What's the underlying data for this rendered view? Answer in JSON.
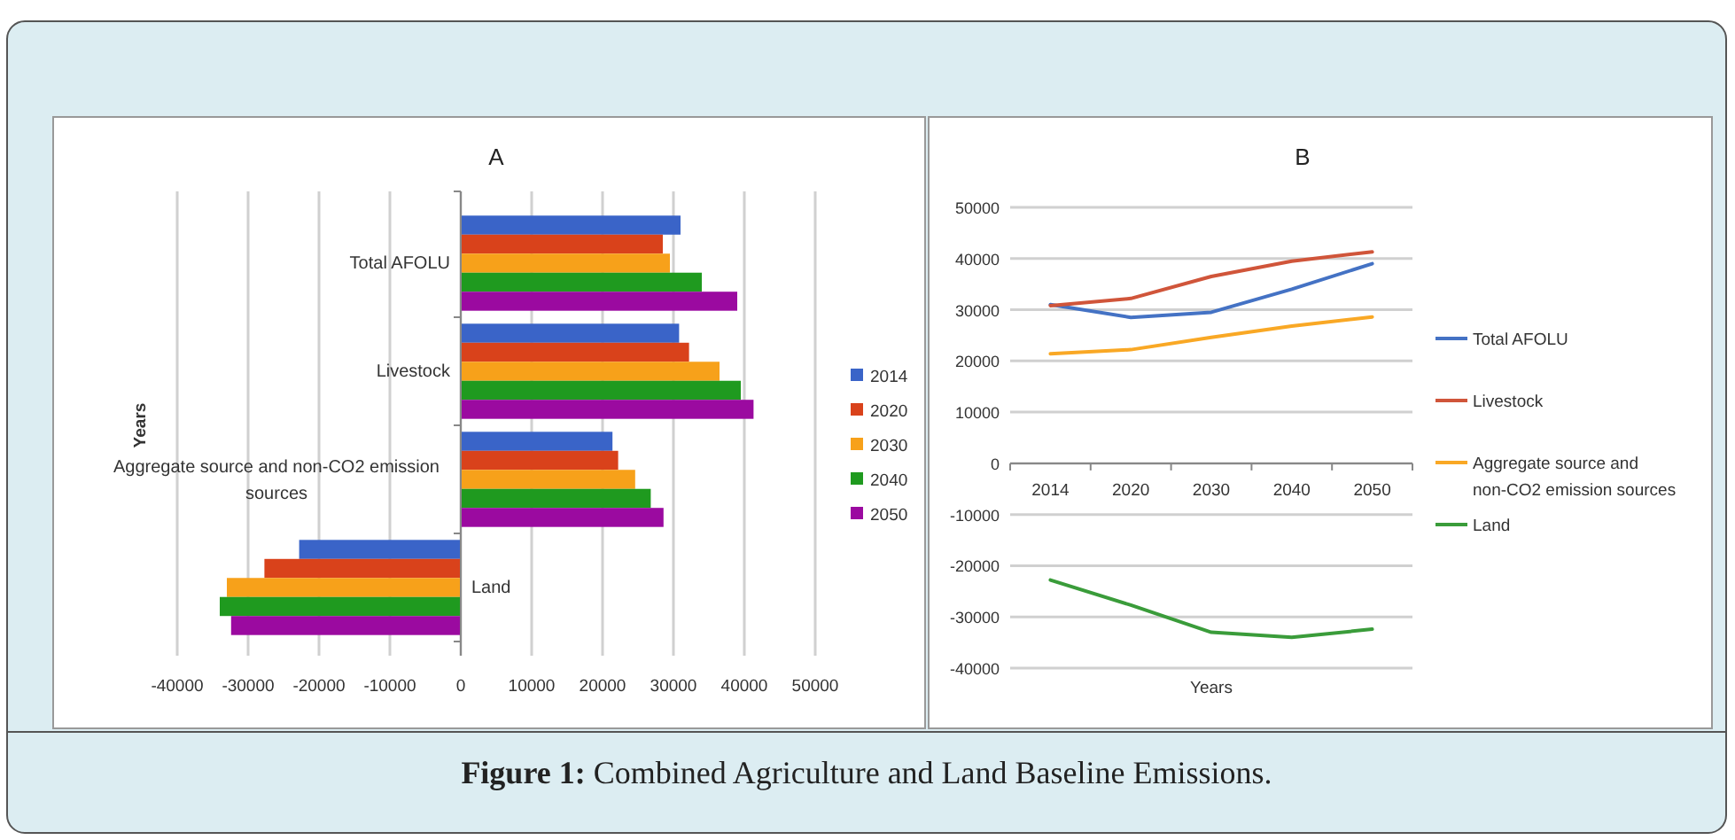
{
  "chart_data": [
    {
      "type": "bar",
      "orientation": "horizontal",
      "title": "A",
      "ylabel": "Years",
      "categories": [
        "Total AFOLU",
        "Livestock",
        "Aggregate source and non-CO2 emission sources",
        "Land"
      ],
      "series": [
        {
          "name": "2014",
          "color": "#3a64c8",
          "values": [
            31000,
            30800,
            21400,
            -22800
          ]
        },
        {
          "name": "2020",
          "color": "#d9421b",
          "values": [
            28500,
            32200,
            22200,
            -27700
          ]
        },
        {
          "name": "2030",
          "color": "#f7a11a",
          "values": [
            29500,
            36500,
            24600,
            -33000
          ]
        },
        {
          "name": "2040",
          "color": "#1f9a1f",
          "values": [
            34000,
            39500,
            26800,
            -34000
          ]
        },
        {
          "name": "2050",
          "color": "#9b0aa0",
          "values": [
            39000,
            41300,
            28600,
            -32400
          ]
        }
      ],
      "xlim": [
        -40000,
        50000
      ],
      "xticks": [
        -40000,
        -30000,
        -20000,
        -10000,
        0,
        10000,
        20000,
        30000,
        40000,
        50000
      ],
      "grid": "x",
      "legend": "right",
      "annotations": [
        "Figure 1: Combined Agriculture and Land Baseline Emissions."
      ]
    },
    {
      "type": "line",
      "title": "B",
      "xlabel": "Years",
      "categories": [
        "2014",
        "2020",
        "2030",
        "2040",
        "2050"
      ],
      "series": [
        {
          "name": "Total AFOLU",
          "color": "#4472c4",
          "values": [
            31000,
            28500,
            29500,
            34000,
            39000
          ]
        },
        {
          "name": "Livestock",
          "color": "#d0553a",
          "values": [
            30800,
            32200,
            36500,
            39500,
            41300
          ]
        },
        {
          "name": "Aggregate source and non-CO2 emission sources",
          "color": "#f9a825",
          "values": [
            21400,
            22200,
            24600,
            26800,
            28600
          ]
        },
        {
          "name": "Land",
          "color": "#3a9c3a",
          "values": [
            -22800,
            -27700,
            -33000,
            -34000,
            -32400
          ]
        }
      ],
      "ylim": [
        -40000,
        50000
      ],
      "yticks": [
        -40000,
        -30000,
        -20000,
        -10000,
        0,
        10000,
        20000,
        30000,
        40000,
        50000
      ],
      "grid": "y",
      "legend": "right"
    }
  ]
}
